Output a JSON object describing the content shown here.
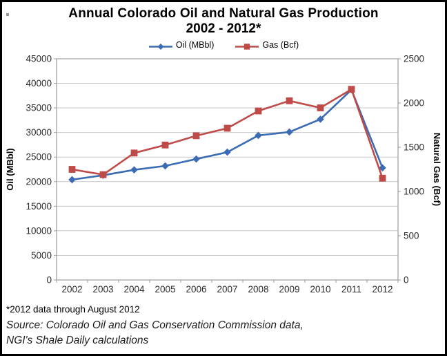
{
  "title": {
    "line1": "Annual Colorado Oil and Natural Gas Production",
    "line2": "2002 - 2012*"
  },
  "legend": [
    {
      "label": "Oil (MBbl)",
      "color": "#3C6CB4",
      "marker": "diamond"
    },
    {
      "label": "Gas (Bcf)",
      "color": "#BE4B48",
      "marker": "square"
    }
  ],
  "footnote": "*2012 data through August 2012",
  "source": {
    "line1": "Source: Colorado Oil and Gas Conservation Commission data,",
    "line2": "NGI's Shale Daily calculations"
  },
  "colors": {
    "oil_series": "#3C6CB4",
    "gas_series": "#BE4B48",
    "gridline": "#c8c8c8",
    "axis_line": "#9b9b9b",
    "tick_text": "#2b2b2b"
  },
  "chart_data": {
    "type": "line",
    "title": "Annual Colorado Oil and Natural Gas Production 2002 - 2012*",
    "categories": [
      "2002",
      "2003",
      "2004",
      "2005",
      "2006",
      "2007",
      "2008",
      "2009",
      "2010",
      "2011",
      "2012"
    ],
    "series": [
      {
        "name": "Oil (MBbl)",
        "axis": "left",
        "color": "#3C6CB4",
        "marker": "diamond",
        "values": [
          20400,
          21300,
          22400,
          23200,
          24600,
          26000,
          29400,
          30100,
          32700,
          38700,
          22800
        ]
      },
      {
        "name": "Gas (Bcf)",
        "axis": "right",
        "color": "#BE4B48",
        "marker": "square",
        "values": [
          1250,
          1190,
          1435,
          1525,
          1630,
          1715,
          1910,
          2025,
          1945,
          2155,
          1150
        ]
      }
    ],
    "left_axis": {
      "label": "Oil (MBbl)",
      "min": 0,
      "max": 45000,
      "step": 5000
    },
    "right_axis": {
      "label": "Natural Gas (Bcf)",
      "min": 0,
      "max": 2500,
      "step": 500
    },
    "grid": true,
    "legend_position": "top"
  }
}
